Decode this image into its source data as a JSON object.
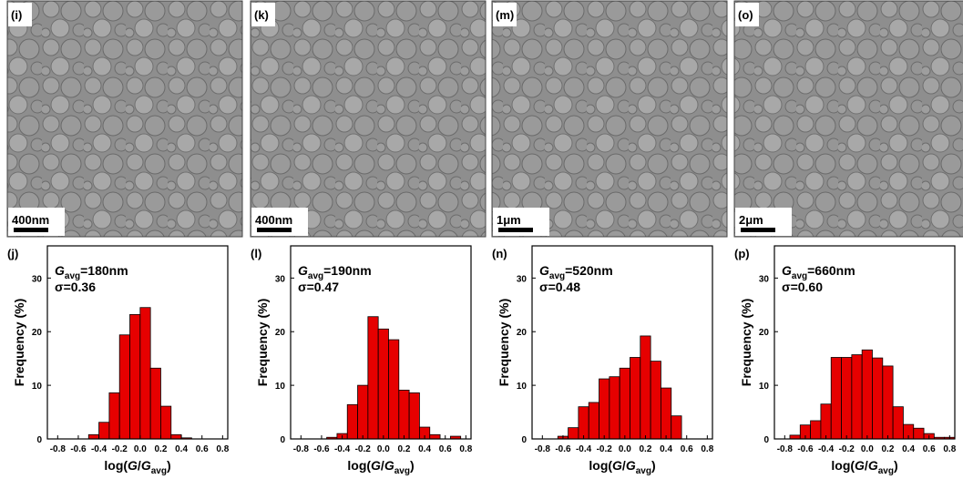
{
  "images": [
    {
      "label": "(i)",
      "scale_bar": "400nm"
    },
    {
      "label": "(k)",
      "scale_bar": "400nm"
    },
    {
      "label": "(m)",
      "scale_bar": "1μm"
    },
    {
      "label": "(o)",
      "scale_bar": "2μm"
    }
  ],
  "chart_data": [
    {
      "type": "histogram",
      "panel_label": "(j)",
      "ylabel": "Frequency (%)",
      "annotation": {
        "symbol": "G",
        "subscript": "avg",
        "text": "=180nm",
        "sigma": "σ=0.36"
      },
      "xlabel": [
        {
          "text": "log(",
          "italic": false
        },
        {
          "text": "G",
          "italic": true
        },
        {
          "text": "/",
          "italic": false
        },
        {
          "text": "G",
          "italic": true
        },
        {
          "text": "avg",
          "italic": false,
          "sub": true
        },
        {
          "text": ")",
          "italic": false
        }
      ],
      "bins": [
        -0.5,
        -0.4,
        -0.3,
        -0.2,
        -0.1,
        0,
        0.1,
        0.2,
        0.3,
        0.4,
        0.5
      ],
      "values": [
        0.8,
        3.1,
        8.6,
        19.4,
        23.2,
        24.5,
        13.2,
        6.1,
        0.8,
        0.2
      ],
      "color": "#e60000",
      "xlim": [
        -0.9,
        0.85
      ],
      "ylim": [
        0,
        36
      ],
      "xticks": [
        -0.8,
        -0.6,
        -0.4,
        -0.2,
        {
          "value": 0,
          "label": "0.0"
        },
        0.2,
        0.4,
        0.6,
        0.8
      ],
      "yticks": [
        0,
        10,
        20,
        30
      ]
    },
    {
      "type": "histogram",
      "panel_label": "(l)",
      "ylabel": "Frequency (%)",
      "annotation": {
        "symbol": "G",
        "subscript": "avg",
        "text": "=190nm",
        "sigma": "σ=0.47"
      },
      "xlabel": [
        {
          "text": "log(",
          "italic": false
        },
        {
          "text": "G",
          "italic": true
        },
        {
          "text": "/",
          "italic": false
        },
        {
          "text": "G",
          "italic": true
        },
        {
          "text": "avg",
          "italic": false,
          "sub": true
        },
        {
          "text": ")",
          "italic": false
        }
      ],
      "bins": [
        -0.55,
        -0.45,
        -0.35,
        -0.25,
        -0.15,
        -0.05,
        0.05,
        0.15,
        0.25,
        0.35,
        0.45,
        0.55,
        0.65,
        0.75
      ],
      "values": [
        0.3,
        1.0,
        6.4,
        10.0,
        22.8,
        20.5,
        18.5,
        9.1,
        8.6,
        2.2,
        0.8,
        0,
        0.5
      ],
      "color": "#e60000",
      "xlim": [
        -0.9,
        0.85
      ],
      "ylim": [
        0,
        36
      ],
      "xticks": [
        -0.8,
        -0.6,
        -0.4,
        -0.2,
        {
          "value": 0,
          "label": "0.0"
        },
        0.2,
        0.4,
        0.6,
        0.8
      ],
      "yticks": [
        0,
        10,
        20,
        30
      ]
    },
    {
      "type": "histogram",
      "panel_label": "(n)",
      "ylabel": "Frequency (%)",
      "annotation": {
        "symbol": "G",
        "subscript": "avg",
        "text": "=520nm",
        "sigma": "σ=0.48"
      },
      "xlabel": [
        {
          "text": "log(",
          "italic": false
        },
        {
          "text": "G",
          "italic": true
        },
        {
          "text": "/",
          "italic": false
        },
        {
          "text": "G",
          "italic": true
        },
        {
          "text": "avg",
          "italic": false,
          "sub": true
        },
        {
          "text": ")",
          "italic": false
        }
      ],
      "bins": [
        -0.65,
        -0.55,
        -0.45,
        -0.35,
        -0.25,
        -0.15,
        -0.05,
        0.05,
        0.15,
        0.25,
        0.35,
        0.45,
        0.55
      ],
      "values": [
        0.5,
        2.1,
        6.0,
        6.8,
        11.2,
        11.6,
        13.2,
        15.2,
        19.2,
        14.5,
        9.5,
        4.3
      ],
      "color": "#e60000",
      "xlim": [
        -0.9,
        0.85
      ],
      "ylim": [
        0,
        36
      ],
      "xticks": [
        -0.8,
        -0.6,
        -0.4,
        -0.2,
        {
          "value": 0,
          "label": "0.0"
        },
        0.2,
        0.4,
        0.6,
        0.8
      ],
      "yticks": [
        0,
        10,
        20,
        30
      ]
    },
    {
      "type": "histogram",
      "panel_label": "(p)",
      "ylabel": "Frequency (%)",
      "annotation": {
        "symbol": "G",
        "subscript": "avg",
        "text": "=660nm",
        "sigma": "σ=0.60"
      },
      "xlabel": [
        {
          "text": "log(",
          "italic": false
        },
        {
          "text": "G",
          "italic": true
        },
        {
          "text": "/",
          "italic": false
        },
        {
          "text": "G",
          "italic": true
        },
        {
          "text": "avg",
          "italic": false,
          "sub": true
        },
        {
          "text": ")",
          "italic": false
        }
      ],
      "bins": [
        -0.75,
        -0.65,
        -0.55,
        -0.45,
        -0.35,
        -0.25,
        -0.15,
        -0.05,
        0.05,
        0.15,
        0.25,
        0.35,
        0.45,
        0.55,
        0.65,
        0.75,
        0.85
      ],
      "values": [
        0.7,
        2.6,
        3.4,
        6.5,
        15.2,
        15.2,
        15.7,
        16.6,
        15.1,
        13.6,
        6.0,
        2.7,
        2.0,
        1.0,
        0.3,
        0.3
      ],
      "color": "#e60000",
      "xlim": [
        -0.9,
        0.85
      ],
      "ylim": [
        0,
        36
      ],
      "xticks": [
        -0.8,
        -0.6,
        -0.4,
        -0.2,
        {
          "value": 0,
          "label": "0.0"
        },
        0.2,
        0.4,
        0.6,
        0.8
      ],
      "yticks": [
        0,
        10,
        20,
        30
      ]
    }
  ]
}
